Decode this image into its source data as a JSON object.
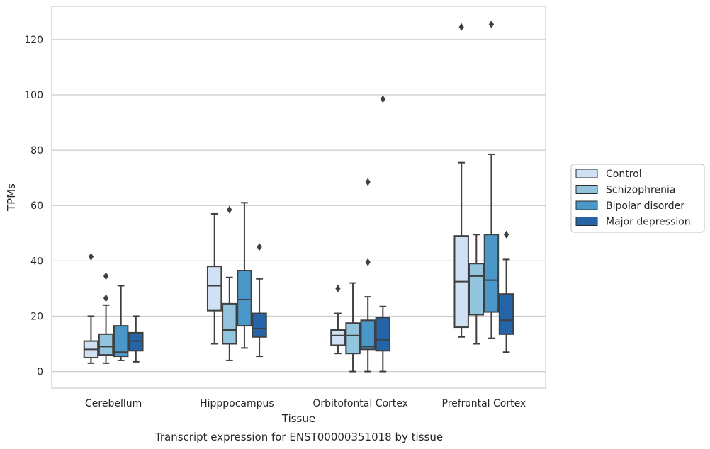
{
  "chart_data": {
    "type": "box",
    "xlabel": "Tissue",
    "ylabel": "TPMs",
    "caption": "Transcript expression for ENST00000351018 by tissue",
    "ylim": [
      -6,
      132
    ],
    "yticks": [
      0,
      20,
      40,
      60,
      80,
      100,
      120
    ],
    "grid": true,
    "legend_position": "right",
    "categories": [
      "Cerebellum",
      "Hipppocampus",
      "Orbitofontal Cortex",
      "Prefrontal Cortex"
    ],
    "series": [
      {
        "name": "Control",
        "color": "#cfe1f2",
        "boxes": [
          {
            "whislo": 3,
            "q1": 5,
            "med": 8,
            "q3": 11,
            "whishi": 20,
            "fliers": [
              41.5
            ]
          },
          {
            "whislo": 10,
            "q1": 22,
            "med": 31,
            "q3": 38,
            "whishi": 57,
            "fliers": []
          },
          {
            "whislo": 6.5,
            "q1": 9.5,
            "med": 13,
            "q3": 15,
            "whishi": 21,
            "fliers": [
              30
            ]
          },
          {
            "whislo": 12.5,
            "q1": 16,
            "med": 32.5,
            "q3": 49,
            "whishi": 75.5,
            "fliers": [
              124.5
            ]
          }
        ]
      },
      {
        "name": "Schizophrenia",
        "color": "#93c4de",
        "boxes": [
          {
            "whislo": 3,
            "q1": 6,
            "med": 9,
            "q3": 13.5,
            "whishi": 24,
            "fliers": [
              34.5,
              26.5
            ]
          },
          {
            "whislo": 4,
            "q1": 10,
            "med": 15,
            "q3": 24.5,
            "whishi": 34,
            "fliers": [
              58.5
            ]
          },
          {
            "whislo": 0,
            "q1": 6.5,
            "med": 13,
            "q3": 17.5,
            "whishi": 32,
            "fliers": []
          },
          {
            "whislo": 10,
            "q1": 20.5,
            "med": 34.5,
            "q3": 39,
            "whishi": 49.5,
            "fliers": []
          }
        ]
      },
      {
        "name": "Bipolar disorder",
        "color": "#4a98c9",
        "boxes": [
          {
            "whislo": 4,
            "q1": 5.5,
            "med": 7,
            "q3": 16.5,
            "whishi": 31,
            "fliers": []
          },
          {
            "whislo": 8.5,
            "q1": 16.5,
            "med": 26,
            "q3": 36.5,
            "whishi": 61,
            "fliers": []
          },
          {
            "whislo": 0,
            "q1": 8,
            "med": 9,
            "q3": 18.5,
            "whishi": 27,
            "fliers": [
              68.5,
              39.5
            ]
          },
          {
            "whislo": 12,
            "q1": 21.5,
            "med": 33,
            "q3": 49.5,
            "whishi": 78.5,
            "fliers": [
              125.5
            ]
          }
        ]
      },
      {
        "name": "Major depression",
        "color": "#2664a8",
        "boxes": [
          {
            "whislo": 3.5,
            "q1": 7.5,
            "med": 11,
            "q3": 14,
            "whishi": 20,
            "fliers": []
          },
          {
            "whislo": 5.5,
            "q1": 12.5,
            "med": 15.5,
            "q3": 21,
            "whishi": 33.5,
            "fliers": [
              45
            ]
          },
          {
            "whislo": 0,
            "q1": 7.5,
            "med": 11.5,
            "q3": 19.5,
            "whishi": 23.5,
            "fliers": [
              98.5
            ]
          },
          {
            "whislo": 7,
            "q1": 13.5,
            "med": 18.5,
            "q3": 28,
            "whishi": 40.5,
            "fliers": [
              49.5
            ]
          }
        ]
      }
    ]
  }
}
